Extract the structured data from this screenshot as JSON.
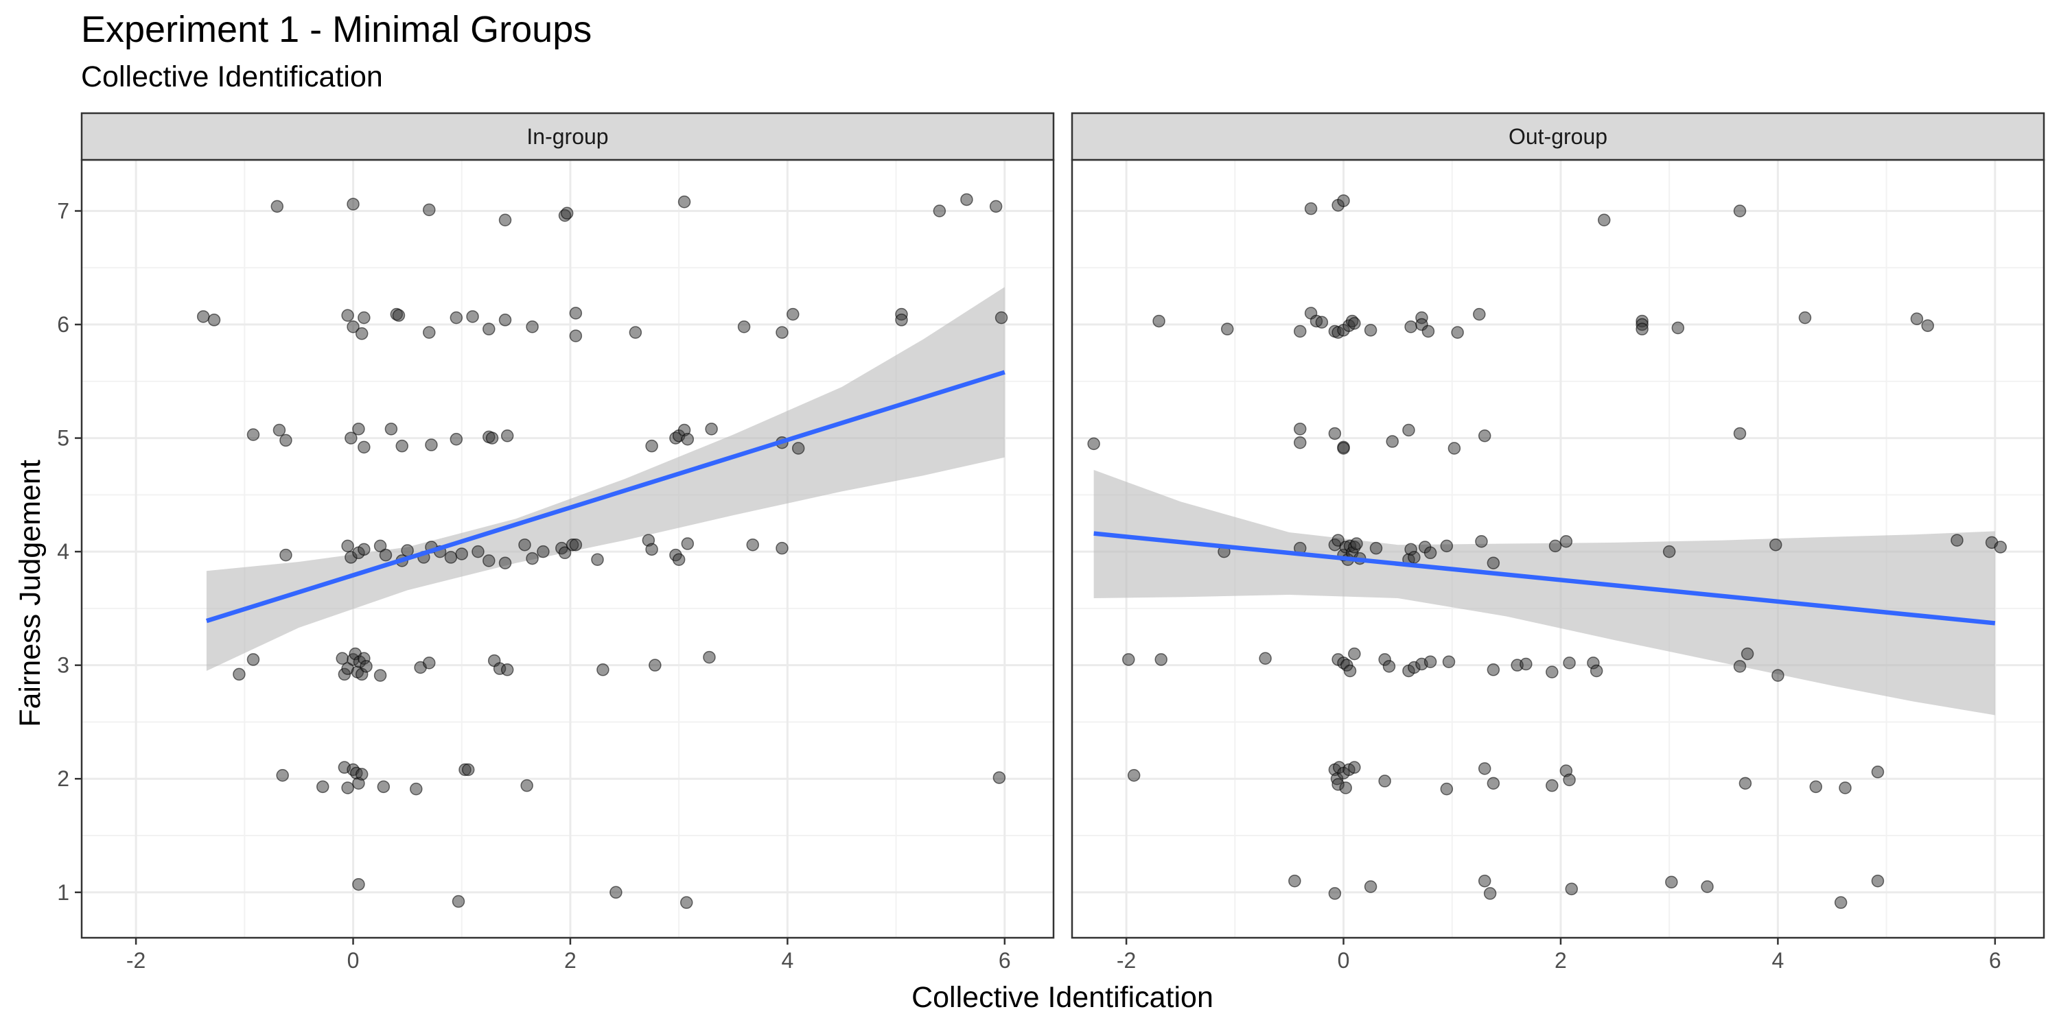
{
  "title": "Experiment 1 - Minimal Groups",
  "subtitle": "Collective Identification",
  "chart_data": {
    "type": "scatter",
    "title": "Experiment 1 - Minimal Groups",
    "subtitle": "Collective Identification",
    "xlabel": "Collective Identification",
    "ylabel": "Fairness Judgement",
    "xlim": [
      -2.5,
      6.45
    ],
    "ylim": [
      0.6,
      7.45
    ],
    "x_ticks": [
      -2,
      0,
      2,
      4,
      6
    ],
    "x_tick_labels": [
      "-2",
      "0",
      "2",
      "4",
      "6"
    ],
    "y_ticks": [
      1,
      2,
      3,
      4,
      5,
      6,
      7
    ],
    "y_tick_labels": [
      "1",
      "2",
      "3",
      "4",
      "5",
      "6",
      "7"
    ],
    "grid": true,
    "colors": {
      "point": "#333333",
      "line": "#3366ff",
      "ribbon": "#bdbdbd",
      "strip": "#d9d9d9"
    },
    "panels": [
      {
        "label": "In-group",
        "fit": {
          "x": [
            -1.35,
            6.0
          ],
          "y": [
            3.39,
            5.58
          ],
          "ci_x": [
            -1.35,
            -0.5,
            0.5,
            1.5,
            2.5,
            3.5,
            4.5,
            5.25,
            6.0
          ],
          "ci_upper": [
            3.83,
            3.91,
            4.04,
            4.29,
            4.64,
            5.03,
            5.45,
            5.87,
            6.33
          ],
          "ci_lower": [
            2.95,
            3.33,
            3.66,
            3.9,
            4.1,
            4.32,
            4.53,
            4.67,
            4.83
          ]
        },
        "points": [
          [
            -0.7,
            7.04
          ],
          [
            0,
            7.06
          ],
          [
            0.7,
            7.01
          ],
          [
            1.4,
            6.92
          ],
          [
            1.95,
            6.96
          ],
          [
            1.97,
            6.98
          ],
          [
            3.05,
            7.08
          ],
          [
            5.4,
            7.0
          ],
          [
            5.65,
            7.1
          ],
          [
            5.92,
            7.04
          ],
          [
            -1.38,
            6.07
          ],
          [
            -1.28,
            6.04
          ],
          [
            -0.05,
            6.08
          ],
          [
            0.1,
            6.06
          ],
          [
            0.4,
            6.09
          ],
          [
            0.42,
            6.08
          ],
          [
            0.95,
            6.06
          ],
          [
            1.1,
            6.07
          ],
          [
            1.4,
            6.04
          ],
          [
            2.05,
            6.1
          ],
          [
            4.05,
            6.09
          ],
          [
            5.05,
            6.09
          ],
          [
            5.05,
            6.04
          ],
          [
            5.97,
            6.06
          ],
          [
            0.0,
            5.98
          ],
          [
            0.08,
            5.92
          ],
          [
            0.7,
            5.93
          ],
          [
            1.25,
            5.96
          ],
          [
            1.65,
            5.98
          ],
          [
            2.05,
            5.9
          ],
          [
            2.6,
            5.93
          ],
          [
            3.6,
            5.98
          ],
          [
            3.95,
            5.93
          ],
          [
            -0.92,
            5.03
          ],
          [
            -0.68,
            5.07
          ],
          [
            -0.62,
            4.98
          ],
          [
            -0.02,
            5.0
          ],
          [
            0.05,
            5.08
          ],
          [
            0.1,
            4.92
          ],
          [
            0.35,
            5.08
          ],
          [
            0.45,
            4.93
          ],
          [
            0.72,
            4.94
          ],
          [
            0.95,
            4.99
          ],
          [
            1.25,
            5.01
          ],
          [
            1.28,
            5.0
          ],
          [
            1.42,
            5.02
          ],
          [
            2.75,
            4.93
          ],
          [
            2.97,
            5.0
          ],
          [
            3.0,
            5.02
          ],
          [
            3.05,
            5.07
          ],
          [
            3.08,
            4.99
          ],
          [
            3.3,
            5.08
          ],
          [
            3.95,
            4.96
          ],
          [
            4.1,
            4.91
          ],
          [
            -0.62,
            3.97
          ],
          [
            -0.05,
            4.05
          ],
          [
            -0.02,
            3.95
          ],
          [
            0.05,
            3.99
          ],
          [
            0.1,
            4.02
          ],
          [
            0.25,
            4.05
          ],
          [
            0.3,
            3.97
          ],
          [
            0.45,
            3.92
          ],
          [
            0.5,
            4.01
          ],
          [
            0.65,
            3.95
          ],
          [
            0.72,
            4.04
          ],
          [
            0.8,
            4.0
          ],
          [
            0.9,
            3.95
          ],
          [
            1.0,
            3.98
          ],
          [
            1.15,
            4.0
          ],
          [
            1.25,
            3.92
          ],
          [
            1.4,
            3.9
          ],
          [
            1.58,
            4.06
          ],
          [
            1.65,
            3.94
          ],
          [
            1.75,
            4.0
          ],
          [
            1.92,
            4.03
          ],
          [
            1.95,
            3.99
          ],
          [
            2.02,
            4.06
          ],
          [
            2.05,
            4.06
          ],
          [
            2.25,
            3.93
          ],
          [
            2.72,
            4.1
          ],
          [
            2.75,
            4.02
          ],
          [
            2.97,
            3.97
          ],
          [
            3.0,
            3.93
          ],
          [
            3.08,
            4.07
          ],
          [
            3.68,
            4.06
          ],
          [
            3.95,
            4.03
          ],
          [
            -1.05,
            2.92
          ],
          [
            -0.92,
            3.05
          ],
          [
            -0.1,
            3.06
          ],
          [
            -0.08,
            2.92
          ],
          [
            -0.05,
            2.97
          ],
          [
            0.0,
            3.05
          ],
          [
            0.02,
            3.1
          ],
          [
            0.04,
            2.94
          ],
          [
            0.06,
            3.03
          ],
          [
            0.08,
            2.92
          ],
          [
            0.1,
            3.06
          ],
          [
            0.12,
            2.99
          ],
          [
            0.25,
            2.91
          ],
          [
            0.62,
            2.98
          ],
          [
            0.7,
            3.02
          ],
          [
            1.3,
            3.04
          ],
          [
            1.35,
            2.97
          ],
          [
            1.42,
            2.96
          ],
          [
            2.3,
            2.96
          ],
          [
            2.78,
            3.0
          ],
          [
            3.28,
            3.07
          ],
          [
            -0.65,
            2.03
          ],
          [
            -0.28,
            1.93
          ],
          [
            -0.08,
            2.1
          ],
          [
            -0.05,
            1.92
          ],
          [
            0.0,
            2.08
          ],
          [
            0.03,
            2.05
          ],
          [
            0.05,
            1.96
          ],
          [
            0.08,
            2.04
          ],
          [
            0.28,
            1.93
          ],
          [
            0.58,
            1.91
          ],
          [
            1.03,
            2.08
          ],
          [
            1.06,
            2.08
          ],
          [
            1.6,
            1.94
          ],
          [
            5.95,
            2.01
          ],
          [
            0.05,
            1.07
          ],
          [
            0.97,
            0.92
          ],
          [
            2.42,
            1.0
          ],
          [
            3.07,
            0.91
          ]
        ]
      },
      {
        "label": "Out-group",
        "fit": {
          "x": [
            -2.3,
            6.0
          ],
          "y": [
            4.16,
            3.37
          ],
          "ci_x": [
            -2.3,
            -1.5,
            -0.5,
            0.5,
            1.5,
            2.5,
            3.5,
            4.5,
            5.25,
            6.0
          ],
          "ci_upper": [
            4.72,
            4.44,
            4.17,
            4.06,
            4.07,
            4.08,
            4.1,
            4.13,
            4.15,
            4.18
          ],
          "ci_lower": [
            3.59,
            3.6,
            3.62,
            3.59,
            3.43,
            3.22,
            3.02,
            2.82,
            2.68,
            2.56
          ]
        },
        "points": [
          [
            -0.3,
            7.02
          ],
          [
            -0.05,
            7.05
          ],
          [
            0.0,
            7.09
          ],
          [
            2.4,
            6.92
          ],
          [
            3.65,
            7.0
          ],
          [
            -1.7,
            6.03
          ],
          [
            -1.07,
            5.96
          ],
          [
            -0.3,
            6.1
          ],
          [
            -0.25,
            6.03
          ],
          [
            -0.2,
            6.02
          ],
          [
            -0.4,
            5.94
          ],
          [
            -0.08,
            5.94
          ],
          [
            -0.05,
            5.93
          ],
          [
            0.0,
            5.95
          ],
          [
            0.05,
            5.99
          ],
          [
            0.08,
            6.03
          ],
          [
            0.1,
            6.01
          ],
          [
            0.25,
            5.95
          ],
          [
            0.62,
            5.98
          ],
          [
            0.72,
            6.06
          ],
          [
            0.72,
            6.0
          ],
          [
            0.78,
            5.94
          ],
          [
            1.05,
            5.93
          ],
          [
            1.25,
            6.09
          ],
          [
            2.75,
            6.03
          ],
          [
            2.75,
            6.0
          ],
          [
            2.75,
            5.96
          ],
          [
            3.08,
            5.97
          ],
          [
            4.25,
            6.06
          ],
          [
            5.28,
            6.05
          ],
          [
            5.38,
            5.99
          ],
          [
            -2.3,
            4.95
          ],
          [
            -0.4,
            5.08
          ],
          [
            -0.4,
            4.96
          ],
          [
            -0.08,
            5.04
          ],
          [
            0.0,
            4.92
          ],
          [
            0.0,
            4.91
          ],
          [
            0.45,
            4.97
          ],
          [
            0.6,
            5.07
          ],
          [
            1.02,
            4.91
          ],
          [
            1.3,
            5.02
          ],
          [
            3.65,
            5.04
          ],
          [
            -1.1,
            4.0
          ],
          [
            -0.4,
            4.03
          ],
          [
            -0.08,
            4.06
          ],
          [
            -0.05,
            4.1
          ],
          [
            0.0,
            3.97
          ],
          [
            0.02,
            4.04
          ],
          [
            0.04,
            3.93
          ],
          [
            0.06,
            4.05
          ],
          [
            0.08,
            3.99
          ],
          [
            0.1,
            4.04
          ],
          [
            0.12,
            4.07
          ],
          [
            0.15,
            3.94
          ],
          [
            0.3,
            4.03
          ],
          [
            0.6,
            3.93
          ],
          [
            0.62,
            4.02
          ],
          [
            0.65,
            3.95
          ],
          [
            0.75,
            4.04
          ],
          [
            0.8,
            3.99
          ],
          [
            0.95,
            4.05
          ],
          [
            1.27,
            4.09
          ],
          [
            1.38,
            3.9
          ],
          [
            1.95,
            4.05
          ],
          [
            2.05,
            4.09
          ],
          [
            3.0,
            4.0
          ],
          [
            3.98,
            4.06
          ],
          [
            5.65,
            4.1
          ],
          [
            5.97,
            4.08
          ],
          [
            6.05,
            4.04
          ],
          [
            -1.98,
            3.05
          ],
          [
            -1.68,
            3.05
          ],
          [
            -0.72,
            3.06
          ],
          [
            -0.05,
            3.05
          ],
          [
            0.0,
            3.02
          ],
          [
            0.03,
            3.0
          ],
          [
            0.06,
            2.95
          ],
          [
            0.1,
            3.1
          ],
          [
            0.38,
            3.05
          ],
          [
            0.42,
            2.99
          ],
          [
            0.6,
            2.95
          ],
          [
            0.65,
            2.98
          ],
          [
            0.72,
            3.01
          ],
          [
            0.8,
            3.03
          ],
          [
            0.97,
            3.03
          ],
          [
            1.38,
            2.96
          ],
          [
            1.6,
            3.0
          ],
          [
            1.68,
            3.01
          ],
          [
            1.92,
            2.94
          ],
          [
            2.08,
            3.02
          ],
          [
            2.3,
            3.02
          ],
          [
            2.33,
            2.95
          ],
          [
            3.65,
            2.99
          ],
          [
            3.72,
            3.1
          ],
          [
            4.0,
            2.91
          ],
          [
            -1.93,
            2.03
          ],
          [
            -0.08,
            2.08
          ],
          [
            -0.06,
            2.0
          ],
          [
            -0.05,
            1.95
          ],
          [
            -0.04,
            2.1
          ],
          [
            0.0,
            2.05
          ],
          [
            0.02,
            1.92
          ],
          [
            0.05,
            2.08
          ],
          [
            0.1,
            2.1
          ],
          [
            0.38,
            1.98
          ],
          [
            0.95,
            1.91
          ],
          [
            1.3,
            2.09
          ],
          [
            1.38,
            1.96
          ],
          [
            1.92,
            1.94
          ],
          [
            2.05,
            2.07
          ],
          [
            2.08,
            1.99
          ],
          [
            3.7,
            1.96
          ],
          [
            4.35,
            1.93
          ],
          [
            4.62,
            1.92
          ],
          [
            4.92,
            2.06
          ],
          [
            -0.45,
            1.1
          ],
          [
            -0.08,
            0.99
          ],
          [
            0.25,
            1.05
          ],
          [
            1.3,
            1.1
          ],
          [
            1.35,
            0.99
          ],
          [
            2.1,
            1.03
          ],
          [
            3.02,
            1.09
          ],
          [
            3.35,
            1.05
          ],
          [
            4.58,
            0.91
          ],
          [
            4.92,
            1.1
          ]
        ]
      }
    ]
  }
}
